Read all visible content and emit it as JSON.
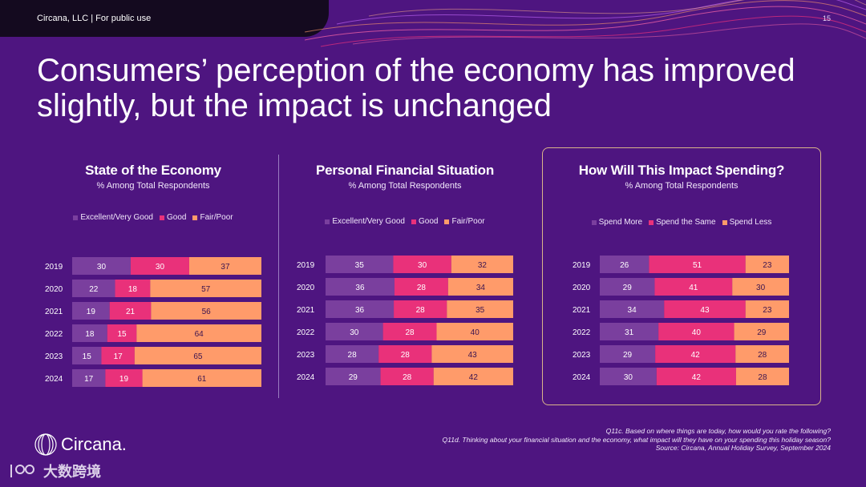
{
  "header": {
    "company": "Circana, LLC |  For public use",
    "page_number": "15"
  },
  "slide": {
    "title": "Consumers’ perception of the economy has improved slightly, but the impact is unchanged"
  },
  "colors": {
    "background": "#4e1580",
    "series_1": "#7a3f9e",
    "series_2": "#e9317a",
    "series_3": "#ff9b6a",
    "highlight_border": "#d9b48a"
  },
  "chart_data": [
    {
      "type": "bar",
      "orientation": "horizontal-stacked-100",
      "title": "State of the Economy",
      "subtitle": "% Among Total Respondents",
      "categories": [
        "2019",
        "2020",
        "2021",
        "2022",
        "2023",
        "2024"
      ],
      "series": [
        {
          "name": "Excellent/Very Good",
          "values": [
            30,
            22,
            19,
            18,
            15,
            17
          ]
        },
        {
          "name": "Good",
          "values": [
            30,
            18,
            21,
            15,
            17,
            19
          ]
        },
        {
          "name": "Fair/Poor",
          "values": [
            37,
            57,
            56,
            64,
            65,
            61
          ]
        }
      ],
      "legend": "top"
    },
    {
      "type": "bar",
      "orientation": "horizontal-stacked-100",
      "title": "Personal Financial Situation",
      "subtitle": "% Among Total Respondents",
      "categories": [
        "2019",
        "2020",
        "2021",
        "2022",
        "2023",
        "2024"
      ],
      "series": [
        {
          "name": "Excellent/Very Good",
          "values": [
            35,
            36,
            36,
            30,
            28,
            29
          ]
        },
        {
          "name": "Good",
          "values": [
            30,
            28,
            28,
            28,
            28,
            28
          ]
        },
        {
          "name": "Fair/Poor",
          "values": [
            32,
            34,
            35,
            40,
            43,
            42
          ]
        }
      ],
      "legend": "top"
    },
    {
      "type": "bar",
      "orientation": "horizontal-stacked-100",
      "title": "How Will This Impact Spending?",
      "subtitle": "% Among Total Respondents",
      "categories": [
        "2019",
        "2020",
        "2021",
        "2022",
        "2023",
        "2024"
      ],
      "series": [
        {
          "name": "Spend More",
          "values": [
            26,
            29,
            34,
            31,
            29,
            30
          ]
        },
        {
          "name": "Spend the Same",
          "values": [
            51,
            41,
            43,
            40,
            42,
            42
          ]
        },
        {
          "name": "Spend Less",
          "values": [
            23,
            30,
            23,
            29,
            28,
            28
          ]
        }
      ],
      "legend": "top"
    }
  ],
  "footnotes": {
    "line1": "Q11c. Based on where things are today, how would you rate the following?",
    "line2": "Q11d. Thinking about your financial situation and the economy, what impact will they have on your spending this holiday season?",
    "line3": "Source: Circana, Annual Holiday Survey, September 2024"
  },
  "logo": {
    "text": "Circana."
  },
  "watermark": {
    "text": "大数跨境"
  }
}
